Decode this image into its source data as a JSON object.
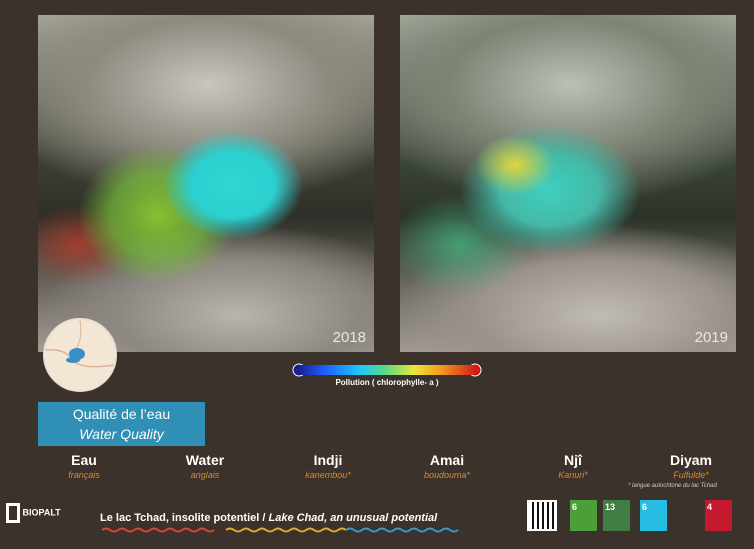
{
  "images": [
    {
      "year": "2018"
    },
    {
      "year": "2019"
    }
  ],
  "legend": {
    "label": "Pollution ( chlorophylle- a )"
  },
  "heading": {
    "fr": "Qualité de l’eau",
    "en": "Water Quality"
  },
  "languages": [
    {
      "word": "Eau",
      "language": "français"
    },
    {
      "word": "Water",
      "language": "anglais"
    },
    {
      "word": "Indji",
      "language": "kanembou*"
    },
    {
      "word": "Amai",
      "language": "boudouma*"
    },
    {
      "word": "Njî",
      "language": "Kanuri*"
    },
    {
      "word": "Diyam",
      "language": "Fulfulde*"
    }
  ],
  "footnote": "* langue autochtone du lac Tchad",
  "footer": {
    "logo": "BIOPALT",
    "tagline_fr": "Le lac Tchad, insolite potentiel /",
    "tagline_en": "Lake Chad, an unusual potential"
  },
  "sdgs": [
    "6",
    "13",
    "6",
    "4"
  ]
}
